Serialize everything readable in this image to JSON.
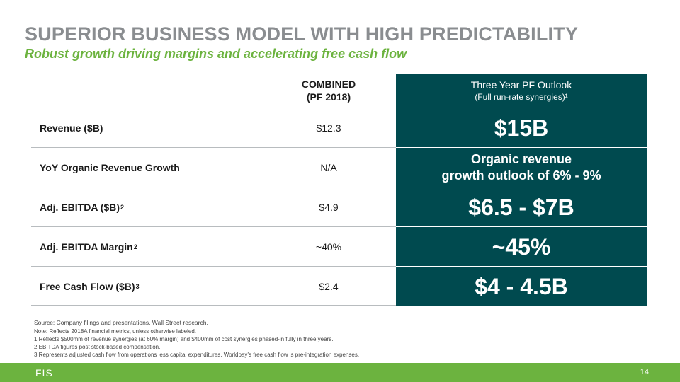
{
  "slide": {
    "title": "SUPERIOR BUSINESS MODEL WITH HIGH PREDICTABILITY",
    "subtitle": "Robust growth driving margins and accelerating free cash flow"
  },
  "table": {
    "header": {
      "combined_line1": "COMBINED",
      "combined_line2": "(PF 2018)",
      "outlook_line1": "Three Year PF Outlook",
      "outlook_line2": "(Full run-rate synergies)¹"
    },
    "rows": [
      {
        "metric": "Revenue ($B)",
        "sup": "",
        "combined": "$12.3",
        "outlook": "$15B"
      },
      {
        "metric": "YoY Organic Revenue Growth",
        "sup": "",
        "combined": "N/A",
        "outlook_line1": "Organic revenue",
        "outlook_line2": "growth outlook of 6% - 9%"
      },
      {
        "metric": "Adj. EBITDA ($B)",
        "sup": "2",
        "combined": "$4.9",
        "outlook": "$6.5 - $7B"
      },
      {
        "metric": "Adj. EBITDA Margin",
        "sup": "2",
        "combined": "~40%",
        "outlook": "~45%"
      },
      {
        "metric": "Free Cash Flow ($B)",
        "sup": "3",
        "combined": "$2.4",
        "outlook": "$4 - 4.5B"
      }
    ]
  },
  "notes": {
    "source": "Source: Company filings and presentations, Wall Street research.",
    "note": "Note: Reflects 2018A financial metrics, unless otherwise labeled.",
    "fn1": "1 Reflects $500mm of revenue synergies (at 60% margin) and $400mm of cost synergies phased-in fully in three years.",
    "fn2": "2 EBITDA figures post stock-based compensation.",
    "fn3": "3 Represents adjusted cash flow from operations less capital expenditures. Worldpay’s free cash flow is pre-integration expenses."
  },
  "footer": {
    "logo_text": "FIS",
    "page_number": "14"
  },
  "colors": {
    "title_gray": "#8a8d90",
    "accent_green": "#6cb33f",
    "teal": "#004a4f"
  }
}
